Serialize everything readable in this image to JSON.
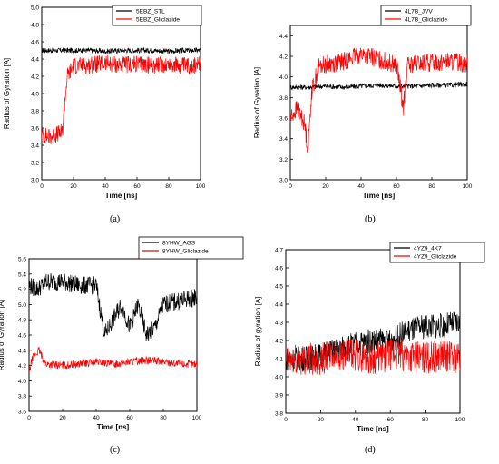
{
  "chart_data": [
    {
      "type": "line",
      "panel_label": "(a)",
      "title": "",
      "xlabel": "Time [ns]",
      "ylabel": "Radius of Gyration [A]",
      "xlim": [
        0,
        100
      ],
      "ylim": [
        3.0,
        5.0
      ],
      "xticks": [
        "0",
        "20",
        "40",
        "60",
        "80",
        "100"
      ],
      "yticks": [
        "3.0",
        "3.2",
        "3.4",
        "3.6",
        "3.8",
        "4.0",
        "4.2",
        "4.4",
        "4.6",
        "4.8",
        "5.0"
      ],
      "legend_position": "top-right",
      "series": [
        {
          "name": "5EBZ_STL",
          "color": "#000000",
          "x": [
            0,
            10,
            20,
            30,
            40,
            50,
            60,
            70,
            80,
            90,
            100
          ],
          "y": [
            4.5,
            4.5,
            4.5,
            4.5,
            4.49,
            4.5,
            4.5,
            4.5,
            4.49,
            4.5,
            4.5
          ]
        },
        {
          "name": "5EBZ_Gliclazide",
          "color": "#ff0000",
          "x": [
            0,
            5,
            10,
            13,
            14,
            16,
            20,
            30,
            40,
            50,
            60,
            70,
            80,
            90,
            100
          ],
          "y": [
            3.52,
            3.5,
            3.53,
            3.55,
            3.8,
            4.2,
            4.32,
            4.33,
            4.35,
            4.33,
            4.34,
            4.33,
            4.34,
            4.32,
            4.33
          ]
        }
      ]
    },
    {
      "type": "line",
      "panel_label": "(b)",
      "title": "",
      "xlabel": "Time [ns]",
      "ylabel": "Radius of Gyration [A]",
      "xlim": [
        0,
        100
      ],
      "ylim": [
        3.0,
        4.5
      ],
      "xticks": [
        "0",
        "20",
        "40",
        "60",
        "80",
        "100"
      ],
      "yticks": [
        "3.0",
        "3.2",
        "3.4",
        "3.6",
        "3.8",
        "4.0",
        "4.2",
        "4.4"
      ],
      "legend_position": "top-right",
      "series": [
        {
          "name": "4L7B_JVV",
          "color": "#000000",
          "x": [
            0,
            10,
            20,
            30,
            40,
            50,
            60,
            70,
            80,
            90,
            100
          ],
          "y": [
            3.9,
            3.9,
            3.91,
            3.9,
            3.91,
            3.92,
            3.91,
            3.91,
            3.92,
            3.92,
            3.93
          ]
        },
        {
          "name": "4L7B_Gliclazide",
          "color": "#ff0000",
          "x": [
            0,
            4,
            8,
            10,
            12,
            16,
            20,
            30,
            40,
            50,
            60,
            64,
            66,
            70,
            80,
            90,
            100
          ],
          "y": [
            3.6,
            3.7,
            3.55,
            3.3,
            3.85,
            4.1,
            4.12,
            4.15,
            4.22,
            4.17,
            4.12,
            3.7,
            4.1,
            4.12,
            4.14,
            4.15,
            4.13
          ]
        }
      ]
    },
    {
      "type": "line",
      "panel_label": "(c)",
      "title": "",
      "xlabel": "Time [ns]",
      "ylabel": "Radius of Gyration [A]",
      "xlim": [
        0,
        100
      ],
      "ylim": [
        3.6,
        5.6
      ],
      "xticks": [
        "0",
        "20",
        "40",
        "60",
        "80",
        "100"
      ],
      "yticks": [
        "3.6",
        "3.8",
        "4.0",
        "4.2",
        "4.4",
        "4.6",
        "4.8",
        "5.0",
        "5.2",
        "5.4",
        "5.6"
      ],
      "legend_position": "top-right",
      "series": [
        {
          "name": "8YHW_AGS",
          "color": "#000000",
          "x": [
            0,
            5,
            10,
            20,
            30,
            40,
            45,
            50,
            55,
            60,
            65,
            70,
            75,
            80,
            90,
            100
          ],
          "y": [
            5.25,
            5.2,
            5.3,
            5.3,
            5.25,
            5.25,
            4.6,
            4.8,
            5.0,
            4.7,
            5.0,
            4.6,
            4.7,
            5.0,
            5.05,
            5.1
          ]
        },
        {
          "name": "8YHW_Gliclazide",
          "color": "#ff0000",
          "x": [
            0,
            2,
            4,
            6,
            8,
            10,
            20,
            30,
            40,
            50,
            60,
            70,
            80,
            90,
            100
          ],
          "y": [
            4.1,
            4.3,
            4.35,
            4.4,
            4.3,
            4.22,
            4.2,
            4.22,
            4.25,
            4.22,
            4.25,
            4.27,
            4.25,
            4.22,
            4.22
          ]
        }
      ]
    },
    {
      "type": "line",
      "panel_label": "(d)",
      "title": "",
      "xlabel": "Time [ns]",
      "ylabel": "Radius of gyration [A]",
      "xlim": [
        0,
        100
      ],
      "ylim": [
        3.8,
        4.7
      ],
      "xticks": [
        "0",
        "20",
        "40",
        "60",
        "80",
        "100"
      ],
      "yticks": [
        "3.8",
        "3.9",
        "4.0",
        "4.1",
        "4.2",
        "4.3",
        "4.4",
        "4.5",
        "4.6",
        "4.7"
      ],
      "legend_position": "top-right",
      "series": [
        {
          "name": "4YZ9_4K7",
          "color": "#000000",
          "x": [
            0,
            10,
            20,
            30,
            40,
            50,
            60,
            70,
            80,
            90,
            100
          ],
          "y": [
            4.1,
            4.1,
            4.12,
            4.15,
            4.18,
            4.2,
            4.2,
            4.25,
            4.28,
            4.28,
            4.3
          ]
        },
        {
          "name": "4YZ9_Gliclazide",
          "color": "#ff0000",
          "x": [
            0,
            10,
            20,
            30,
            40,
            50,
            60,
            70,
            80,
            90,
            100
          ],
          "y": [
            4.08,
            4.1,
            4.1,
            4.12,
            4.12,
            4.1,
            4.12,
            4.12,
            4.1,
            4.12,
            4.1
          ]
        }
      ]
    }
  ]
}
